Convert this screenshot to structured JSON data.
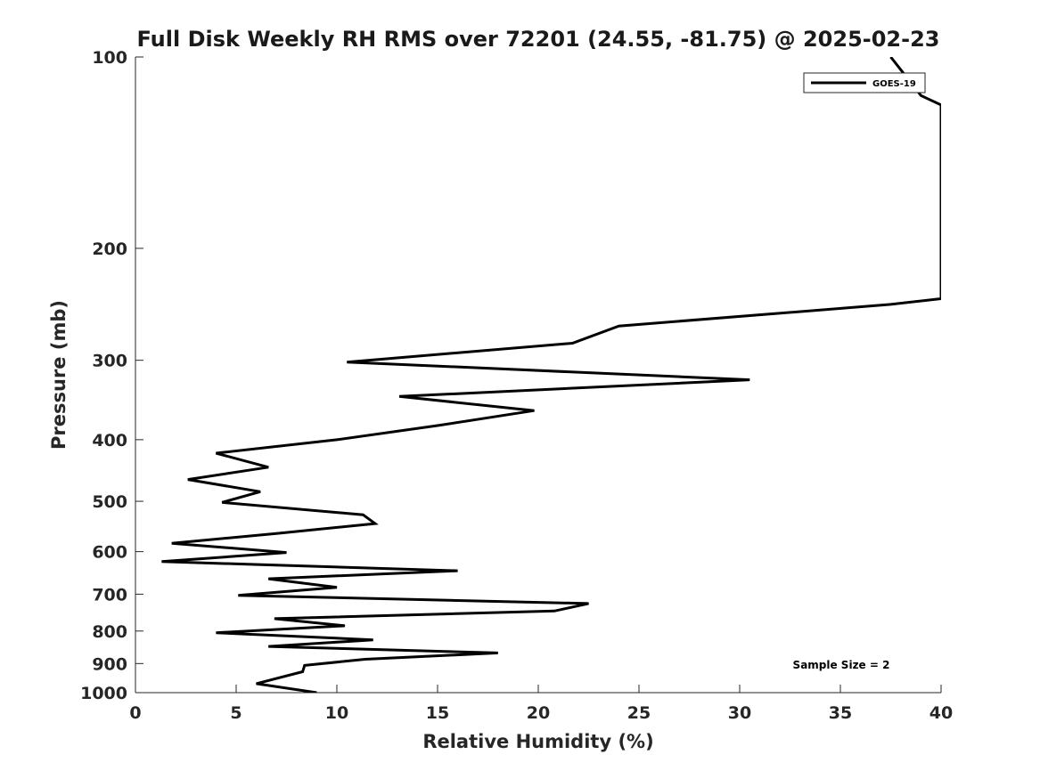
{
  "chart_data": {
    "type": "line",
    "title": "Full Disk Weekly RH RMS over 72201 (24.55, -81.75) @ 2025-02-23",
    "xlabel": "Relative Humidity (%)",
    "ylabel": "Pressure (mb)",
    "xlim": [
      0,
      40
    ],
    "ylim": [
      100,
      1000
    ],
    "yscale": "log",
    "y_inverted": true,
    "x_ticks": [
      0,
      5,
      10,
      15,
      20,
      25,
      30,
      35,
      40
    ],
    "y_ticks": [
      100,
      200,
      300,
      400,
      500,
      600,
      700,
      800,
      900,
      1000
    ],
    "grid": false,
    "legend": {
      "placement": "top-right",
      "entries": [
        "GOES-19"
      ]
    },
    "annotation": "Sample Size = 2",
    "series": [
      {
        "name": "GOES-19",
        "color": "#000000",
        "points": [
          [
            37.5,
            100
          ],
          [
            39,
            115
          ],
          [
            40,
            119
          ],
          [
            40,
            240
          ],
          [
            37.5,
            245
          ],
          [
            24,
            265
          ],
          [
            21.7,
            282
          ],
          [
            10.5,
            302
          ],
          [
            30.5,
            322
          ],
          [
            13.1,
            342
          ],
          [
            19.8,
            360
          ],
          [
            15.0,
            380
          ],
          [
            10.0,
            400
          ],
          [
            4.0,
            420
          ],
          [
            6.6,
            442
          ],
          [
            2.6,
            462
          ],
          [
            6.2,
            483
          ],
          [
            4.3,
            502
          ],
          [
            11.3,
            525
          ],
          [
            11.9,
            542
          ],
          [
            7.0,
            562
          ],
          [
            1.8,
            582
          ],
          [
            7.5,
            602
          ],
          [
            1.3,
            622
          ],
          [
            16.0,
            643
          ],
          [
            6.6,
            662
          ],
          [
            10.0,
            683
          ],
          [
            5.1,
            703
          ],
          [
            22.5,
            724
          ],
          [
            20.8,
            744
          ],
          [
            6.9,
            765
          ],
          [
            10.4,
            785
          ],
          [
            4.0,
            805
          ],
          [
            11.8,
            826
          ],
          [
            6.6,
            846
          ],
          [
            18.0,
            866
          ],
          [
            11.4,
            886
          ],
          [
            8.4,
            906
          ],
          [
            8.3,
            927
          ],
          [
            6.0,
            968
          ],
          [
            9.0,
            1000
          ]
        ]
      }
    ]
  }
}
